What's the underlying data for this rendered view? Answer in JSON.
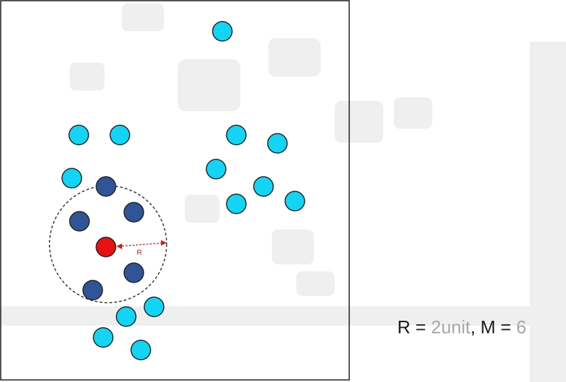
{
  "diagram": {
    "radius_label": "R"
  },
  "equation": {
    "r_label": "R =",
    "r_value": "2unit",
    "separator": ", M =",
    "m_value": "6"
  },
  "colors": {
    "frame": "#1a1a1a",
    "outside_point": "#13d4f5",
    "inside_point": "#2f5597",
    "query_point": "#e81010",
    "radius_arrow": "#e81010",
    "value_text": "#a6a6a6"
  }
}
